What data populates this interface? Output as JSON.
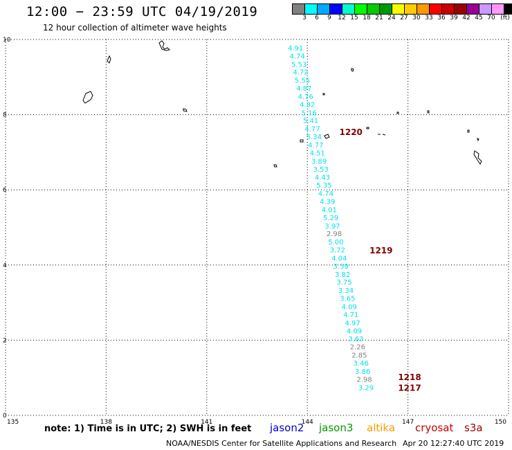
{
  "header": {
    "title": "12:00 − 23:59 UTC 04/19/2019",
    "subtitle": "12 hour collection of altimeter wave heights"
  },
  "legend_scale": {
    "colors": [
      "#808080",
      "#00ffff",
      "#00aaff",
      "#0000ff",
      "#00ffcc",
      "#00ff00",
      "#00cc00",
      "#009900",
      "#ffff00",
      "#ffcc00",
      "#ff9900",
      "#ff0000",
      "#cc0000",
      "#990000",
      "#990099",
      "#cc99ff",
      "#ff99ff",
      "#000000"
    ],
    "labels": [
      "3",
      "6",
      "9",
      "12",
      "15",
      "18",
      "21",
      "24",
      "27",
      "30",
      "33",
      "36",
      "39",
      "42",
      "45",
      "70",
      "(ft)"
    ]
  },
  "axes": {
    "lon_ticks": [
      "135",
      "138",
      "141",
      "144",
      "147",
      "150"
    ],
    "lat_ticks": [
      "0",
      "2",
      "4",
      "6",
      "8",
      "10"
    ],
    "lon_range": [
      135,
      150
    ],
    "lat_range": [
      0,
      10
    ]
  },
  "chart_data": {
    "type": "scatter",
    "series": [
      {
        "values": [
          {
            "lon": 143.65,
            "lat": 9.78,
            "v": "4.91",
            "c": "cyan"
          },
          {
            "lon": 143.7,
            "lat": 9.57,
            "v": "4.74",
            "c": "cyan"
          },
          {
            "lon": 143.75,
            "lat": 9.35,
            "v": "5.53",
            "c": "cyan"
          },
          {
            "lon": 143.8,
            "lat": 9.14,
            "v": "4.72",
            "c": "cyan"
          },
          {
            "lon": 143.85,
            "lat": 8.92,
            "v": "5.55",
            "c": "cyan"
          },
          {
            "lon": 143.9,
            "lat": 8.71,
            "v": "4.87",
            "c": "cyan"
          },
          {
            "lon": 143.95,
            "lat": 8.49,
            "v": "4.76",
            "c": "cyan"
          },
          {
            "lon": 144.0,
            "lat": 8.28,
            "v": "4.82",
            "c": "cyan"
          },
          {
            "lon": 144.05,
            "lat": 8.06,
            "v": "5.16",
            "c": "cyan"
          },
          {
            "lon": 144.1,
            "lat": 7.85,
            "v": "5.41",
            "c": "cyan"
          },
          {
            "lon": 144.15,
            "lat": 7.63,
            "v": "4.77",
            "c": "cyan"
          },
          {
            "lon": 144.2,
            "lat": 7.42,
            "v": "5.34",
            "c": "cyan"
          },
          {
            "lon": 144.25,
            "lat": 7.2,
            "v": "4.77",
            "c": "cyan"
          },
          {
            "lon": 144.3,
            "lat": 6.99,
            "v": "4.51",
            "c": "cyan"
          },
          {
            "lon": 144.35,
            "lat": 6.77,
            "v": "3.89",
            "c": "cyan"
          },
          {
            "lon": 144.4,
            "lat": 6.56,
            "v": "3.53",
            "c": "cyan"
          },
          {
            "lon": 144.45,
            "lat": 6.34,
            "v": "4.43",
            "c": "cyan"
          },
          {
            "lon": 144.5,
            "lat": 6.13,
            "v": "5.35",
            "c": "cyan"
          },
          {
            "lon": 144.55,
            "lat": 5.91,
            "v": "4.74",
            "c": "cyan"
          },
          {
            "lon": 144.6,
            "lat": 5.7,
            "v": "4.39",
            "c": "cyan"
          },
          {
            "lon": 144.65,
            "lat": 5.48,
            "v": "4.01",
            "c": "cyan"
          },
          {
            "lon": 144.7,
            "lat": 5.27,
            "v": "5.29",
            "c": "cyan"
          },
          {
            "lon": 144.75,
            "lat": 5.05,
            "v": "3.97",
            "c": "cyan"
          },
          {
            "lon": 144.8,
            "lat": 4.84,
            "v": "2.98",
            "c": "gray"
          },
          {
            "lon": 144.85,
            "lat": 4.62,
            "v": "5.00",
            "c": "cyan"
          },
          {
            "lon": 144.9,
            "lat": 4.41,
            "v": "3.72",
            "c": "cyan"
          },
          {
            "lon": 144.95,
            "lat": 4.19,
            "v": "4.04",
            "c": "cyan"
          },
          {
            "lon": 145.0,
            "lat": 3.98,
            "v": "3.39",
            "c": "cyan"
          },
          {
            "lon": 145.05,
            "lat": 3.76,
            "v": "3.82",
            "c": "cyan"
          },
          {
            "lon": 145.1,
            "lat": 3.55,
            "v": "3.75",
            "c": "cyan"
          },
          {
            "lon": 145.15,
            "lat": 3.33,
            "v": "3.34",
            "c": "cyan"
          },
          {
            "lon": 145.2,
            "lat": 3.12,
            "v": "3.65",
            "c": "cyan"
          },
          {
            "lon": 145.25,
            "lat": 2.9,
            "v": "4.09",
            "c": "cyan"
          },
          {
            "lon": 145.3,
            "lat": 2.69,
            "v": "4.71",
            "c": "cyan"
          },
          {
            "lon": 145.35,
            "lat": 2.47,
            "v": "4.97",
            "c": "cyan"
          },
          {
            "lon": 145.4,
            "lat": 2.26,
            "v": "4.09",
            "c": "cyan"
          },
          {
            "lon": 145.45,
            "lat": 2.04,
            "v": "3.63",
            "c": "cyan"
          },
          {
            "lon": 145.5,
            "lat": 1.83,
            "v": "2.26",
            "c": "gray"
          },
          {
            "lon": 145.55,
            "lat": 1.61,
            "v": "2.85",
            "c": "gray"
          },
          {
            "lon": 145.6,
            "lat": 1.4,
            "v": "3.46",
            "c": "cyan"
          },
          {
            "lon": 145.65,
            "lat": 1.18,
            "v": "3.86",
            "c": "cyan"
          },
          {
            "lon": 145.7,
            "lat": 0.97,
            "v": "2.98",
            "c": "gray"
          },
          {
            "lon": 145.75,
            "lat": 0.75,
            "v": "3.29",
            "c": "cyan"
          }
        ]
      }
    ],
    "time_labels": [
      {
        "lon": 145.3,
        "lat": 7.55,
        "text": "1220"
      },
      {
        "lon": 146.2,
        "lat": 4.4,
        "text": "1219"
      },
      {
        "lon": 147.05,
        "lat": 1.03,
        "text": "1218"
      },
      {
        "lon": 147.05,
        "lat": 0.75,
        "text": "1217"
      }
    ]
  },
  "footer": {
    "note": "note: 1) Time is in UTC; 2) SWH is in feet",
    "satellites": [
      {
        "name": "jason2",
        "color": "#0000cc"
      },
      {
        "name": "jason3",
        "color": "#009900"
      },
      {
        "name": "altika",
        "color": "#ff9900"
      },
      {
        "name": "cryosat",
        "color": "#cc0000"
      },
      {
        "name": "s3a",
        "color": "#990000"
      }
    ],
    "credit": "NOAA/NESDIS Center for Satellite Applications and Research",
    "timestamp": "Apr 20 12:27:40 UTC 2019"
  }
}
